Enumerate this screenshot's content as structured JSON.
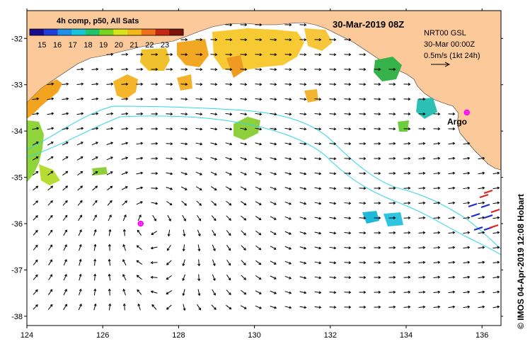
{
  "map": {
    "composite_label": "4h comp, p50, All Sats",
    "date_label": "30-Mar-2019 08Z",
    "current_info": {
      "line1": "NRT00 GSL",
      "line2": "30-Mar 00:00Z",
      "line3": "0.5m/s (1kt 24h)"
    },
    "station_label": "Argo",
    "credit": "© IMOS 04-Apr-2019 12:08 Hobart",
    "colorbar": {
      "range": [
        14.2,
        24.2
      ],
      "ticks": [
        "15",
        "16",
        "17",
        "18",
        "19",
        "20",
        "21",
        "22",
        "23"
      ],
      "colors": [
        "#1a0a8c",
        "#1f3fd6",
        "#1f8fe8",
        "#17c4d8",
        "#20c46a",
        "#7ad21f",
        "#d9e21a",
        "#f5b81a",
        "#ee7018",
        "#c42a12",
        "#7a1208"
      ]
    },
    "lon_ticks": [
      "124",
      "126",
      "128",
      "130",
      "132",
      "134",
      "136"
    ],
    "lat_ticks": [
      "-32",
      "-33",
      "-34",
      "-35",
      "-36",
      "-37",
      "-38"
    ],
    "extent": {
      "lon": [
        124,
        136.5
      ],
      "lat": [
        -38.2,
        -31.4
      ]
    },
    "argo_floats": [
      {
        "lon": 135.6,
        "lat": -33.6
      },
      {
        "lon": 127.0,
        "lat": -36.0
      }
    ],
    "colors": {
      "land": "#fcc99a",
      "ocean": "#ffffff",
      "contour": "#2fd7e8",
      "argo": "#ff00ff",
      "arrow": "#000000"
    }
  }
}
